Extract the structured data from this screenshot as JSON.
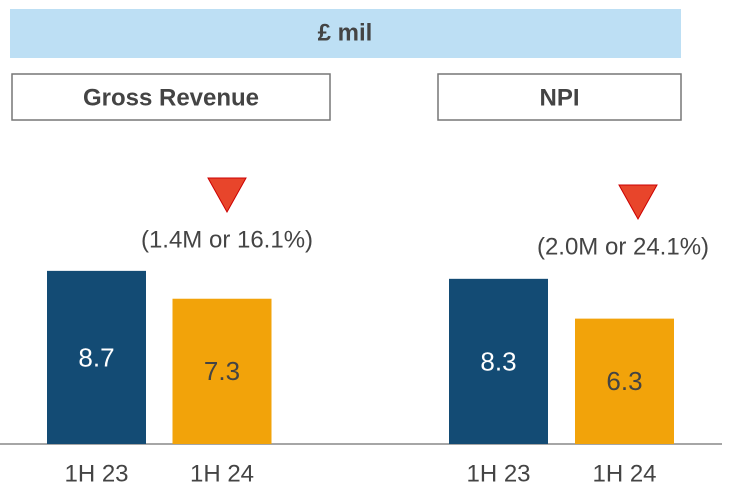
{
  "header": "£ mil",
  "chart_data": [
    {
      "type": "bar",
      "title": "Gross Revenue",
      "categories": [
        "1H 23",
        "1H 24"
      ],
      "values": [
        8.7,
        7.3
      ],
      "colors": [
        "#134b74",
        "#f2a30a"
      ],
      "annotation": "(1.4M or 16.1%)"
    },
    {
      "type": "bar",
      "title": "NPI",
      "categories": [
        "1H 23",
        "1H 24"
      ],
      "values": [
        8.3,
        6.3
      ],
      "colors": [
        "#134b74",
        "#f2a30a"
      ],
      "annotation": "(2.0M or 24.1%)"
    }
  ]
}
